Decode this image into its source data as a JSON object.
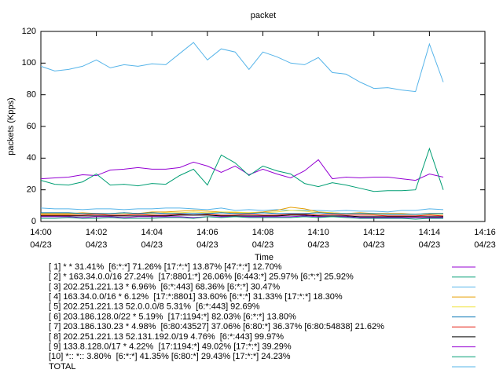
{
  "chart_data": {
    "type": "line",
    "title": "packet",
    "xlabel": "Time",
    "ylabel": "packets (Kpps)",
    "x": [
      0,
      0.5,
      1,
      1.5,
      2,
      2.5,
      3,
      3.5,
      4,
      4.5,
      5,
      5.5,
      6,
      6.5,
      7,
      7.5,
      8,
      8.5,
      9,
      9.5,
      10,
      10.5,
      11,
      11.5,
      12,
      12.5,
      13,
      13.5,
      14,
      14.5
    ],
    "xlim": [
      0,
      16
    ],
    "xticks": [
      {
        "value": 0,
        "label": "14:00 04/23"
      },
      {
        "value": 2,
        "label": "14:02 04/23"
      },
      {
        "value": 4,
        "label": "14:04 04/23"
      },
      {
        "value": 6,
        "label": "14:06 04/23"
      },
      {
        "value": 8,
        "label": "14:08 04/23"
      },
      {
        "value": 10,
        "label": "14:10 04/23"
      },
      {
        "value": 12,
        "label": "14:12 04/23"
      },
      {
        "value": 14,
        "label": "14:14 04/23"
      },
      {
        "value": 16,
        "label": "14:16 04/23"
      }
    ],
    "ylim": [
      0,
      120
    ],
    "yticks": [
      0,
      20,
      40,
      60,
      80,
      100,
      120
    ],
    "series": [
      {
        "name": "[ 1] * * 31.41%  [6:*:*] 71.26% [17:*:*] 13.87% [47:*:*] 12.70%",
        "color": "#9400d3",
        "values": [
          27,
          27.5,
          28,
          29.5,
          29,
          32.5,
          33,
          34,
          33,
          33,
          34,
          37.5,
          35,
          31,
          35,
          29.5,
          33,
          30,
          27.5,
          32,
          39,
          27,
          28,
          27.5,
          28,
          28,
          27,
          26,
          30,
          28
        ]
      },
      {
        "name": "[ 2] * 163.34.0.0/16 27.24%  [17:8801:*] 26.06% [6:443:*] 25.97% [6:*:*] 25.92%",
        "color": "#009e73",
        "values": [
          26,
          23.5,
          23,
          25,
          30,
          23,
          23.5,
          22.5,
          24,
          23.5,
          29,
          33,
          23,
          42,
          37,
          29,
          35,
          32,
          30,
          24,
          22,
          24.5,
          23,
          21,
          19,
          19.5,
          19.5,
          20,
          46,
          20
        ]
      },
      {
        "name": "[ 3] 202.251.221.13 * 6.96%  [6:*:443] 68.36% [6:*:*] 30.47%",
        "color": "#56b4e9",
        "values": [
          8.5,
          8,
          8,
          7.5,
          8,
          8,
          7.5,
          8,
          8,
          8.5,
          8.5,
          8,
          7.5,
          8.5,
          7,
          7.5,
          7,
          7.5,
          7,
          7,
          7,
          6.5,
          7,
          6.5,
          6.5,
          6,
          7,
          7,
          8,
          7.5
        ]
      },
      {
        "name": "[ 4] 163.34.0.0/16 * 6.12%  [17:*:8801] 33.60% [6:*:*] 31.33% [17:*:*] 18.30%",
        "color": "#e69f00",
        "values": [
          5,
          5,
          5,
          5.5,
          5,
          5,
          5.5,
          5,
          6,
          6,
          6.5,
          7,
          6.5,
          6,
          5.5,
          5.5,
          6,
          7,
          9,
          8,
          6,
          5.5,
          5,
          5.5,
          5,
          5,
          5,
          4.5,
          5,
          5
        ]
      },
      {
        "name": "[ 5] 202.251.221.13 52.0.0.0/8 5.31%  [6:*:443] 92.69%",
        "color": "#f0e442",
        "values": [
          4.5,
          4.5,
          4.5,
          5,
          4.5,
          5,
          5,
          5,
          5,
          5.5,
          5.5,
          6,
          5.5,
          6,
          6,
          5.5,
          5.5,
          6,
          7,
          6.5,
          5.5,
          5.5,
          5,
          5,
          4.5,
          4.5,
          4.5,
          4.5,
          4.5,
          4.5
        ]
      },
      {
        "name": "[ 6] 203.186.128.0/22 * 5.19%  [17:1194:*] 82.03% [6:*:*] 13.80%",
        "color": "#0072b2",
        "values": [
          5.5,
          5.5,
          5.5,
          5,
          5,
          5,
          5.5,
          5,
          5.5,
          5,
          5,
          5,
          5,
          5.5,
          5,
          5,
          5.5,
          5,
          5,
          5,
          5.5,
          5,
          5,
          5,
          5,
          4.5,
          4.5,
          4.5,
          5,
          5
        ]
      },
      {
        "name": "[ 7] 203.186.130.23 * 4.98%  [6:80:43527] 37.06% [6:80:*] 36.37% [6:80:54838] 21.62%",
        "color": "#e51e10",
        "values": [
          4,
          4,
          4,
          4,
          4.5,
          4,
          4,
          4.5,
          4,
          4,
          4.5,
          4,
          4.5,
          4,
          4,
          4.5,
          4,
          4,
          4.5,
          4.5,
          4,
          4.5,
          4,
          4,
          4,
          3.5,
          3.5,
          3.5,
          4,
          3.5
        ]
      },
      {
        "name": "[ 8] 202.251.221.13 52.131.192.0/19 4.76%  [6:*:443] 99.97%",
        "color": "#000000",
        "values": [
          3.5,
          3.5,
          3.5,
          3.5,
          3.5,
          3.5,
          3.5,
          3.5,
          3.5,
          3.5,
          4,
          4,
          4,
          3.5,
          3.5,
          3.5,
          3.5,
          3.5,
          4,
          4,
          3.5,
          3.5,
          3.5,
          3,
          3,
          3,
          3,
          3,
          3,
          3
        ]
      },
      {
        "name": "[ 9] 133.8.128.0/17 * 4.22%  [17:1194:*] 49.02% [17:*:*] 39.29%",
        "color": "#9400d3",
        "values": [
          3,
          3,
          3,
          2.5,
          3,
          3,
          2.5,
          3,
          3,
          3,
          3,
          2.5,
          3,
          3,
          3,
          3,
          3,
          3,
          3,
          3.5,
          3,
          3,
          3,
          2.5,
          2.5,
          2.5,
          2.5,
          2.5,
          2.5,
          2.5
        ]
      },
      {
        "name": "[10] *:: *:: 3.80%  [6:*:*] 41.35% [6:80:*] 29.43% [17:*:*] 24.23%",
        "color": "#009e73",
        "values": [
          2,
          2,
          2.5,
          2,
          2,
          2.5,
          2,
          2,
          2,
          2.5,
          2.5,
          2,
          3,
          2.5,
          3,
          2.5,
          2.5,
          2.5,
          2.5,
          3,
          2.5,
          3,
          2.5,
          2,
          2,
          2,
          2,
          1.5,
          2,
          2
        ]
      },
      {
        "name": "TOTAL",
        "color": "#56b4e9",
        "values": [
          98,
          95,
          96,
          98,
          102,
          97,
          99,
          98,
          99.5,
          99,
          106,
          113,
          102,
          109,
          107,
          96,
          107,
          104,
          100,
          99,
          103.5,
          94,
          93,
          88,
          84,
          84.5,
          83,
          82,
          112,
          88
        ]
      }
    ]
  }
}
